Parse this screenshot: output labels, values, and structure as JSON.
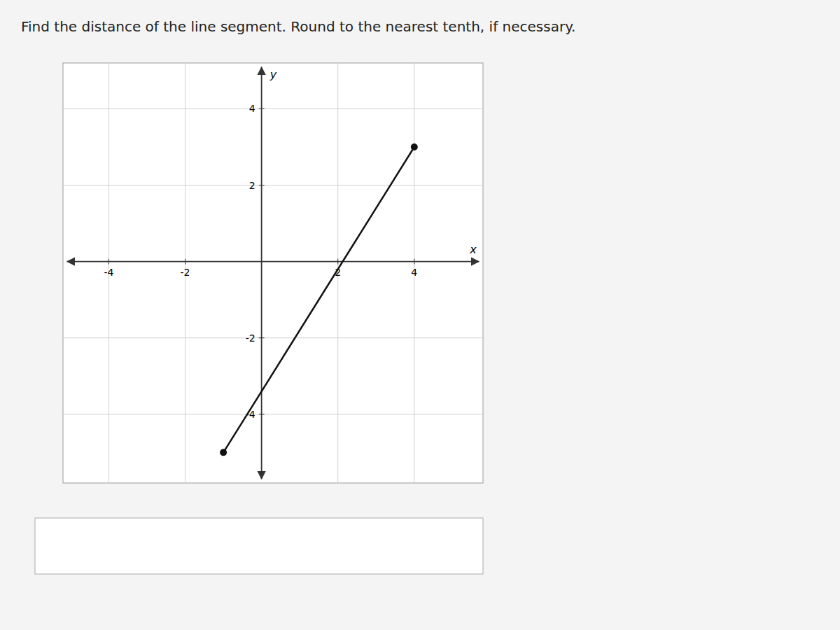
{
  "chart_data": {
    "type": "line",
    "title": "Find the distance of the line segment. Round to the nearest tenth, if necessary.",
    "x": [
      -1,
      4
    ],
    "values": [
      -5,
      3
    ],
    "color": "#111111",
    "marker": "circle",
    "xlim": [
      -5.2,
      5.8
    ],
    "ylim": [
      -5.8,
      5.2
    ],
    "xticks": [
      -4,
      -2,
      2,
      4
    ],
    "yticks": [
      -4,
      -2,
      2,
      4
    ],
    "xlabel": "x",
    "ylabel": "y",
    "grid": true
  }
}
